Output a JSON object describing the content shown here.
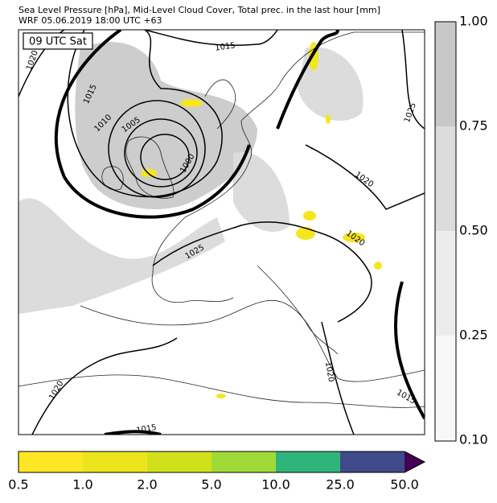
{
  "header": {
    "title_line1": "Sea Level Pressure [hPa], Mid-Level Cloud Cover, Total prec. in the last hour [mm]",
    "title_line2": "WRF 05.06.2019 18:00 UTC +63"
  },
  "map": {
    "time_label": "09 UTC Sat",
    "contour_labels": [
      "1020",
      "1015",
      "1015",
      "1010",
      "1005",
      "1000",
      "1025",
      "1020",
      "1020",
      "1025",
      "1020",
      "1015",
      "1020",
      "1015"
    ]
  },
  "cloud_colorbar": {
    "ticks": [
      "1.00",
      "0.75",
      "0.50",
      "0.25",
      "0.10"
    ]
  },
  "precip_colorbar": {
    "ticks": [
      "0.5",
      "1.0",
      "2.0",
      "5.0",
      "10.0",
      "25.0",
      "50.0"
    ]
  }
}
